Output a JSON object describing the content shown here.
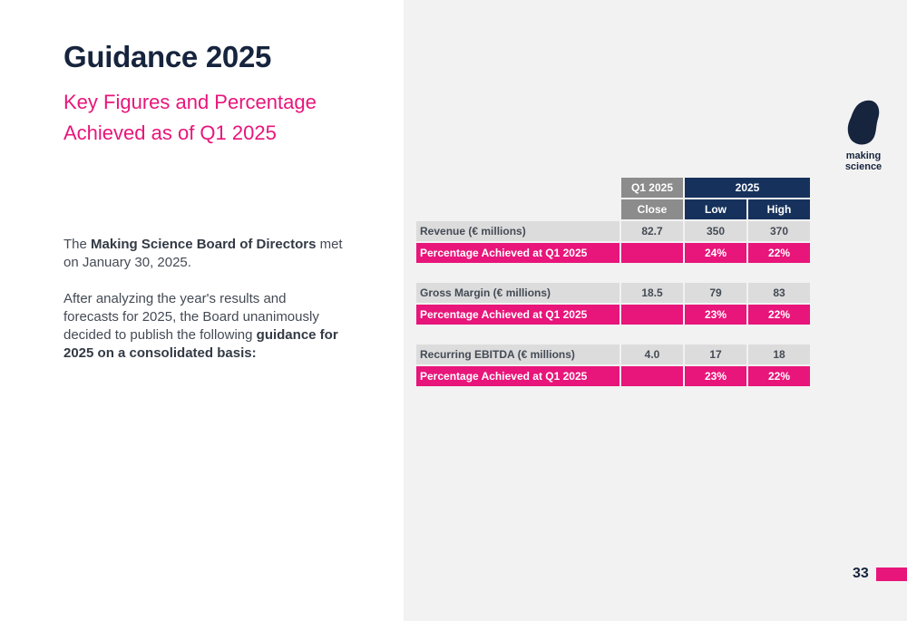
{
  "title": "Guidance 2025",
  "subtitle": "Key Figures and Percentage Achieved as of Q1 2025",
  "intro": {
    "p1_before": "The ",
    "p1_bold": "Making Science Board of Directors",
    "p1_after": " met on January 30, 2025.",
    "p2_before": "After analyzing the year's results and forecasts for 2025, the Board unanimously decided to publish the following ",
    "p2_bold": "guidance for 2025 on a consolidated basis:"
  },
  "logo": {
    "text": "making science"
  },
  "table": {
    "header": {
      "q1": "Q1 2025",
      "year": "2025",
      "close": "Close",
      "low": "Low",
      "high": "High"
    },
    "groups": [
      {
        "metric": {
          "label": "Revenue (€ millions)",
          "close": "82.7",
          "low": "350",
          "high": "370"
        },
        "pct": {
          "label": "Percentage Achieved at Q1 2025",
          "close": "",
          "low": "24%",
          "high": "22%"
        }
      },
      {
        "metric": {
          "label": "Gross Margin (€ millions)",
          "close": "18.5",
          "low": "79",
          "high": "83"
        },
        "pct": {
          "label": "Percentage Achieved at Q1 2025",
          "close": "",
          "low": "23%",
          "high": "22%"
        }
      },
      {
        "metric": {
          "label": "Recurring EBITDA (€ millions)",
          "close": "4.0",
          "low": "17",
          "high": "18"
        },
        "pct": {
          "label": "Percentage Achieved at Q1 2025",
          "close": "",
          "low": "23%",
          "high": "22%"
        }
      }
    ]
  },
  "page_number": "33",
  "colors": {
    "accent": "#e8157a",
    "navy": "#16325c",
    "dark_text": "#16243d",
    "grey_header": "#8c8c8c",
    "row_grey": "#dcdcdc",
    "panel_bg": "#f2f2f2"
  }
}
